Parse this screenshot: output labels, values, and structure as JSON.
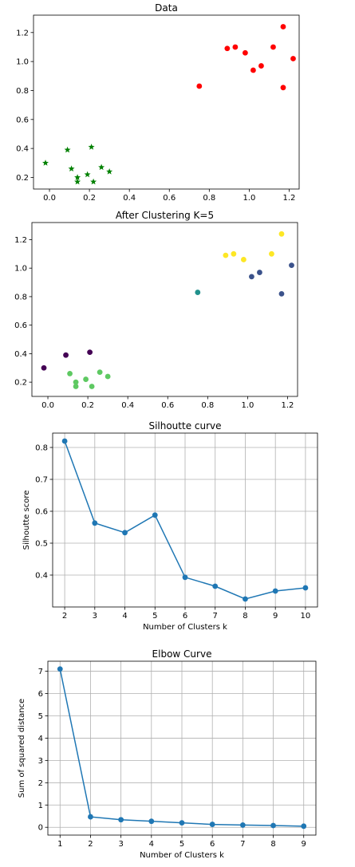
{
  "chart_data": [
    {
      "id": "data",
      "type": "scatter",
      "title": "Data",
      "xlabel": "",
      "ylabel": "",
      "xlim": [
        -0.08,
        1.25
      ],
      "ylim": [
        0.12,
        1.32
      ],
      "xticks": [
        0.0,
        0.2,
        0.4,
        0.6,
        0.8,
        1.0,
        1.2
      ],
      "xtick_labels": [
        "0.0",
        "0.2",
        "0.4",
        "0.6",
        "0.8",
        "1.0",
        "1.2"
      ],
      "yticks": [
        0.2,
        0.4,
        0.6,
        0.8,
        1.0,
        1.2
      ],
      "ytick_labels": [
        "0.2",
        "0.4",
        "0.6",
        "0.8",
        "1.0",
        "1.2"
      ],
      "grid": false,
      "series": [
        {
          "marker": "star",
          "color": "#008000",
          "points": [
            [
              -0.02,
              0.3
            ],
            [
              0.09,
              0.39
            ],
            [
              0.11,
              0.26
            ],
            [
              0.14,
              0.17
            ],
            [
              0.14,
              0.2
            ],
            [
              0.19,
              0.22
            ],
            [
              0.21,
              0.41
            ],
            [
              0.22,
              0.17
            ],
            [
              0.26,
              0.27
            ],
            [
              0.3,
              0.24
            ]
          ]
        },
        {
          "marker": "circle",
          "color": "#ff0000",
          "points": [
            [
              0.75,
              0.83
            ],
            [
              0.89,
              1.09
            ],
            [
              0.93,
              1.1
            ],
            [
              0.98,
              1.06
            ],
            [
              1.02,
              0.94
            ],
            [
              1.06,
              0.97
            ],
            [
              1.12,
              1.1
            ],
            [
              1.17,
              1.24
            ],
            [
              1.17,
              0.82
            ],
            [
              1.22,
              1.02
            ]
          ]
        }
      ]
    },
    {
      "id": "clusters",
      "type": "scatter",
      "title": "After Clustering K=5",
      "xlabel": "",
      "ylabel": "",
      "xlim": [
        -0.08,
        1.25
      ],
      "ylim": [
        0.1,
        1.32
      ],
      "xticks": [
        0.0,
        0.2,
        0.4,
        0.6,
        0.8,
        1.0,
        1.2
      ],
      "xtick_labels": [
        "0.0",
        "0.2",
        "0.4",
        "0.6",
        "0.8",
        "1.0",
        "1.2"
      ],
      "yticks": [
        0.2,
        0.4,
        0.6,
        0.8,
        1.0,
        1.2
      ],
      "ytick_labels": [
        "0.2",
        "0.4",
        "0.6",
        "0.8",
        "1.0",
        "1.2"
      ],
      "grid": false,
      "series": [
        {
          "marker": "circle",
          "color": "#440154",
          "points": [
            [
              -0.02,
              0.3
            ],
            [
              0.09,
              0.39
            ],
            [
              0.21,
              0.41
            ]
          ]
        },
        {
          "marker": "circle",
          "color": "#5ec962",
          "points": [
            [
              0.11,
              0.26
            ],
            [
              0.14,
              0.17
            ],
            [
              0.14,
              0.2
            ],
            [
              0.19,
              0.22
            ],
            [
              0.22,
              0.17
            ],
            [
              0.26,
              0.27
            ],
            [
              0.3,
              0.24
            ]
          ]
        },
        {
          "marker": "circle",
          "color": "#21918c",
          "points": [
            [
              0.75,
              0.83
            ]
          ]
        },
        {
          "marker": "circle",
          "color": "#3b528b",
          "points": [
            [
              1.02,
              0.94
            ],
            [
              1.06,
              0.97
            ],
            [
              1.17,
              0.82
            ],
            [
              1.22,
              1.02
            ]
          ]
        },
        {
          "marker": "circle",
          "color": "#fde725",
          "points": [
            [
              0.89,
              1.09
            ],
            [
              0.93,
              1.1
            ],
            [
              0.98,
              1.06
            ],
            [
              1.12,
              1.1
            ],
            [
              1.17,
              1.24
            ]
          ]
        }
      ]
    },
    {
      "id": "silhouette",
      "type": "line",
      "title": "Silhoutte curve",
      "xlabel": "Number of Clusters k",
      "ylabel": "Silhoutte score",
      "xlim": [
        1.6,
        10.4
      ],
      "ylim": [
        0.3,
        0.845
      ],
      "xticks": [
        2,
        3,
        4,
        5,
        6,
        7,
        8,
        9,
        10
      ],
      "xtick_labels": [
        "2",
        "3",
        "4",
        "5",
        "6",
        "7",
        "8",
        "9",
        "10"
      ],
      "yticks": [
        0.4,
        0.5,
        0.6,
        0.7,
        0.8
      ],
      "ytick_labels": [
        "0.4",
        "0.5",
        "0.6",
        "0.7",
        "0.8"
      ],
      "grid": true,
      "color": "#1f77b4",
      "x": [
        2,
        3,
        4,
        5,
        6,
        7,
        8,
        9,
        10
      ],
      "y": [
        0.82,
        0.563,
        0.533,
        0.588,
        0.393,
        0.365,
        0.325,
        0.35,
        0.36
      ]
    },
    {
      "id": "elbow",
      "type": "line",
      "title": "Elbow Curve",
      "xlabel": "Number of Clusters k",
      "ylabel": "Sum of squared distance",
      "xlim": [
        0.6,
        9.4
      ],
      "ylim": [
        -0.35,
        7.45
      ],
      "xticks": [
        1,
        2,
        3,
        4,
        5,
        6,
        7,
        8,
        9
      ],
      "xtick_labels": [
        "1",
        "2",
        "3",
        "4",
        "5",
        "6",
        "7",
        "8",
        "9"
      ],
      "yticks": [
        0,
        1,
        2,
        3,
        4,
        5,
        6,
        7
      ],
      "ytick_labels": [
        "0",
        "1",
        "2",
        "3",
        "4",
        "5",
        "6",
        "7"
      ],
      "grid": true,
      "color": "#1f77b4",
      "x": [
        1,
        2,
        3,
        4,
        5,
        6,
        7,
        8,
        9
      ],
      "y": [
        7.1,
        0.47,
        0.34,
        0.27,
        0.2,
        0.13,
        0.1,
        0.08,
        0.05
      ]
    }
  ]
}
